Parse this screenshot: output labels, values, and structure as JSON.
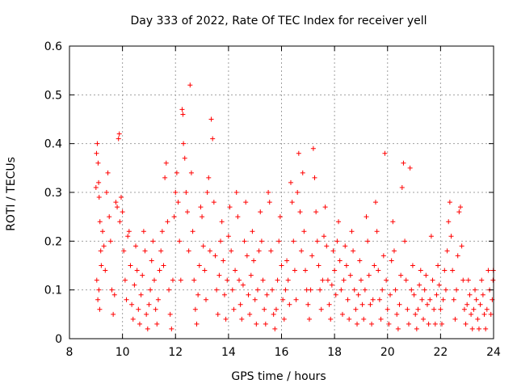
{
  "chart_data": {
    "type": "scatter",
    "title": "Day 333 of 2022, Rate Of TEC Index for receiver yell",
    "xlabel": "GPS time / hours",
    "ylabel": "ROTI / TECUs",
    "xlim": [
      8,
      24
    ],
    "ylim": [
      0,
      0.6
    ],
    "xticks": [
      "8",
      "10",
      "12",
      "14",
      "16",
      "18",
      "20",
      "22",
      "24"
    ],
    "yticks": [
      "0",
      "0.1",
      "0.2",
      "0.3",
      "0.4",
      "0.5",
      "0.6"
    ],
    "grid": true,
    "marker": "+",
    "marker_color": "#ff0000",
    "series": [
      {
        "points": [
          [
            9.0,
            0.31
          ],
          [
            9.02,
            0.38
          ],
          [
            9.05,
            0.4
          ],
          [
            9.08,
            0.36
          ],
          [
            9.1,
            0.32
          ],
          [
            9.12,
            0.29
          ],
          [
            9.15,
            0.24
          ],
          [
            9.18,
            0.18
          ],
          [
            9.03,
            0.12
          ],
          [
            9.07,
            0.08
          ],
          [
            9.11,
            0.1
          ],
          [
            9.14,
            0.06
          ],
          [
            9.2,
            0.15
          ],
          [
            9.25,
            0.22
          ],
          [
            9.3,
            0.19
          ],
          [
            9.35,
            0.14
          ],
          [
            9.4,
            0.3
          ],
          [
            9.45,
            0.34
          ],
          [
            9.5,
            0.25
          ],
          [
            9.55,
            0.2
          ],
          [
            9.6,
            0.1
          ],
          [
            9.65,
            0.05
          ],
          [
            9.7,
            0.09
          ],
          [
            9.75,
            0.28
          ],
          [
            9.8,
            0.27
          ],
          [
            9.85,
            0.41
          ],
          [
            9.88,
            0.42
          ],
          [
            9.9,
            0.24
          ],
          [
            9.95,
            0.29
          ],
          [
            10.0,
            0.26
          ],
          [
            10.05,
            0.18
          ],
          [
            10.1,
            0.12
          ],
          [
            10.15,
            0.08
          ],
          [
            10.2,
            0.21
          ],
          [
            10.25,
            0.22
          ],
          [
            10.3,
            0.15
          ],
          [
            10.35,
            0.07
          ],
          [
            10.4,
            0.04
          ],
          [
            10.45,
            0.11
          ],
          [
            10.5,
            0.19
          ],
          [
            10.55,
            0.14
          ],
          [
            10.6,
            0.06
          ],
          [
            10.65,
            0.03
          ],
          [
            10.7,
            0.09
          ],
          [
            10.75,
            0.13
          ],
          [
            10.8,
            0.22
          ],
          [
            10.85,
            0.18
          ],
          [
            10.9,
            0.05
          ],
          [
            10.95,
            0.02
          ],
          [
            11.0,
            0.07
          ],
          [
            11.05,
            0.1
          ],
          [
            11.1,
            0.16
          ],
          [
            11.15,
            0.2
          ],
          [
            11.2,
            0.12
          ],
          [
            11.25,
            0.06
          ],
          [
            11.3,
            0.03
          ],
          [
            11.35,
            0.08
          ],
          [
            11.4,
            0.14
          ],
          [
            11.45,
            0.18
          ],
          [
            11.5,
            0.22
          ],
          [
            11.55,
            0.15
          ],
          [
            11.6,
            0.33
          ],
          [
            11.65,
            0.36
          ],
          [
            11.7,
            0.24
          ],
          [
            11.75,
            0.1
          ],
          [
            11.8,
            0.05
          ],
          [
            11.85,
            0.02
          ],
          [
            11.9,
            0.12
          ],
          [
            11.95,
            0.25
          ],
          [
            12.0,
            0.3
          ],
          [
            12.05,
            0.34
          ],
          [
            12.1,
            0.28
          ],
          [
            12.15,
            0.2
          ],
          [
            12.2,
            0.12
          ],
          [
            12.25,
            0.47
          ],
          [
            12.28,
            0.46
          ],
          [
            12.3,
            0.4
          ],
          [
            12.35,
            0.37
          ],
          [
            12.4,
            0.3
          ],
          [
            12.45,
            0.26
          ],
          [
            12.5,
            0.18
          ],
          [
            12.55,
            0.52
          ],
          [
            12.6,
            0.34
          ],
          [
            12.65,
            0.22
          ],
          [
            12.7,
            0.12
          ],
          [
            12.75,
            0.06
          ],
          [
            12.8,
            0.03
          ],
          [
            12.85,
            0.09
          ],
          [
            12.9,
            0.15
          ],
          [
            12.95,
            0.27
          ],
          [
            13.0,
            0.25
          ],
          [
            13.05,
            0.19
          ],
          [
            13.1,
            0.14
          ],
          [
            13.15,
            0.08
          ],
          [
            13.2,
            0.3
          ],
          [
            13.25,
            0.33
          ],
          [
            13.3,
            0.18
          ],
          [
            13.35,
            0.45
          ],
          [
            13.4,
            0.41
          ],
          [
            13.45,
            0.28
          ],
          [
            13.5,
            0.17
          ],
          [
            13.55,
            0.1
          ],
          [
            13.6,
            0.05
          ],
          [
            13.65,
            0.13
          ],
          [
            13.7,
            0.2
          ],
          [
            13.75,
            0.24
          ],
          [
            13.8,
            0.16
          ],
          [
            13.85,
            0.09
          ],
          [
            13.9,
            0.04
          ],
          [
            13.95,
            0.12
          ],
          [
            14.0,
            0.21
          ],
          [
            14.05,
            0.27
          ],
          [
            14.1,
            0.18
          ],
          [
            14.15,
            0.1
          ],
          [
            14.2,
            0.06
          ],
          [
            14.25,
            0.14
          ],
          [
            14.3,
            0.3
          ],
          [
            14.35,
            0.25
          ],
          [
            14.4,
            0.12
          ],
          [
            14.45,
            0.07
          ],
          [
            14.5,
            0.04
          ],
          [
            14.55,
            0.11
          ],
          [
            14.6,
            0.2
          ],
          [
            14.65,
            0.28
          ],
          [
            14.7,
            0.17
          ],
          [
            14.75,
            0.09
          ],
          [
            14.8,
            0.05
          ],
          [
            14.85,
            0.13
          ],
          [
            14.9,
            0.22
          ],
          [
            14.95,
            0.16
          ],
          [
            15.0,
            0.08
          ],
          [
            15.05,
            0.03
          ],
          [
            15.1,
            0.1
          ],
          [
            15.15,
            0.18
          ],
          [
            15.2,
            0.26
          ],
          [
            15.25,
            0.2
          ],
          [
            15.3,
            0.12
          ],
          [
            15.35,
            0.06
          ],
          [
            15.4,
            0.03
          ],
          [
            15.45,
            0.09
          ],
          [
            15.5,
            0.3
          ],
          [
            15.55,
            0.28
          ],
          [
            15.6,
            0.18
          ],
          [
            15.65,
            0.1
          ],
          [
            15.7,
            0.05
          ],
          [
            15.75,
            0.02
          ],
          [
            15.8,
            0.06
          ],
          [
            15.85,
            0.12
          ],
          [
            15.9,
            0.2
          ],
          [
            15.95,
            0.25
          ],
          [
            16.0,
            0.15
          ],
          [
            16.05,
            0.08
          ],
          [
            16.1,
            0.04
          ],
          [
            16.15,
            0.1
          ],
          [
            16.2,
            0.16
          ],
          [
            16.25,
            0.12
          ],
          [
            16.3,
            0.07
          ],
          [
            16.35,
            0.32
          ],
          [
            16.4,
            0.28
          ],
          [
            16.45,
            0.2
          ],
          [
            16.5,
            0.14
          ],
          [
            16.55,
            0.08
          ],
          [
            16.6,
            0.3
          ],
          [
            16.65,
            0.38
          ],
          [
            16.7,
            0.26
          ],
          [
            16.75,
            0.18
          ],
          [
            16.8,
            0.34
          ],
          [
            16.85,
            0.22
          ],
          [
            16.9,
            0.14
          ],
          [
            16.95,
            0.1
          ],
          [
            17.0,
            0.07
          ],
          [
            17.05,
            0.04
          ],
          [
            17.1,
            0.1
          ],
          [
            17.15,
            0.17
          ],
          [
            17.2,
            0.39
          ],
          [
            17.25,
            0.33
          ],
          [
            17.3,
            0.26
          ],
          [
            17.35,
            0.2
          ],
          [
            17.4,
            0.15
          ],
          [
            17.45,
            0.1
          ],
          [
            17.5,
            0.06
          ],
          [
            17.55,
            0.12
          ],
          [
            17.6,
            0.21
          ],
          [
            17.65,
            0.27
          ],
          [
            17.7,
            0.19
          ],
          [
            17.75,
            0.12
          ],
          [
            17.8,
            0.07
          ],
          [
            17.85,
            0.04
          ],
          [
            17.9,
            0.11
          ],
          [
            17.95,
            0.18
          ],
          [
            18.0,
            0.14
          ],
          [
            18.05,
            0.09
          ],
          [
            18.1,
            0.2
          ],
          [
            18.15,
            0.24
          ],
          [
            18.2,
            0.16
          ],
          [
            18.25,
            0.1
          ],
          [
            18.3,
            0.05
          ],
          [
            18.35,
            0.12
          ],
          [
            18.4,
            0.19
          ],
          [
            18.45,
            0.15
          ],
          [
            18.5,
            0.08
          ],
          [
            18.55,
            0.04
          ],
          [
            18.6,
            0.13
          ],
          [
            18.65,
            0.22
          ],
          [
            18.7,
            0.18
          ],
          [
            18.75,
            0.1
          ],
          [
            18.8,
            0.06
          ],
          [
            18.85,
            0.03
          ],
          [
            18.9,
            0.09
          ],
          [
            18.95,
            0.16
          ],
          [
            19.0,
            0.12
          ],
          [
            19.05,
            0.07
          ],
          [
            19.1,
            0.04
          ],
          [
            19.15,
            0.1
          ],
          [
            19.2,
            0.25
          ],
          [
            19.25,
            0.2
          ],
          [
            19.3,
            0.13
          ],
          [
            19.35,
            0.07
          ],
          [
            19.4,
            0.03
          ],
          [
            19.45,
            0.08
          ],
          [
            19.5,
            0.15
          ],
          [
            19.55,
            0.28
          ],
          [
            19.6,
            0.22
          ],
          [
            19.65,
            0.14
          ],
          [
            19.7,
            0.08
          ],
          [
            19.75,
            0.04
          ],
          [
            19.8,
            0.1
          ],
          [
            19.85,
            0.17
          ],
          [
            19.9,
            0.38
          ],
          [
            19.95,
            0.12
          ],
          [
            20.0,
            0.06
          ],
          [
            20.05,
            0.03
          ],
          [
            20.1,
            0.09
          ],
          [
            20.15,
            0.16
          ],
          [
            20.2,
            0.24
          ],
          [
            20.25,
            0.18
          ],
          [
            20.3,
            0.1
          ],
          [
            20.35,
            0.05
          ],
          [
            20.4,
            0.02
          ],
          [
            20.45,
            0.07
          ],
          [
            20.5,
            0.13
          ],
          [
            20.55,
            0.31
          ],
          [
            20.6,
            0.36
          ],
          [
            20.65,
            0.2
          ],
          [
            20.7,
            0.12
          ],
          [
            20.75,
            0.06
          ],
          [
            20.8,
            0.03
          ],
          [
            20.85,
            0.35
          ],
          [
            20.9,
            0.1
          ],
          [
            20.95,
            0.15
          ],
          [
            21.0,
            0.09
          ],
          [
            21.05,
            0.05
          ],
          [
            21.1,
            0.02
          ],
          [
            21.15,
            0.06
          ],
          [
            21.2,
            0.11
          ],
          [
            21.25,
            0.14
          ],
          [
            21.3,
            0.08
          ],
          [
            21.35,
            0.04
          ],
          [
            21.4,
            0.1
          ],
          [
            21.45,
            0.13
          ],
          [
            21.5,
            0.07
          ],
          [
            21.55,
            0.03
          ],
          [
            21.6,
            0.08
          ],
          [
            21.65,
            0.21
          ],
          [
            21.7,
            0.12
          ],
          [
            21.75,
            0.06
          ],
          [
            21.8,
            0.03
          ],
          [
            21.85,
            0.09
          ],
          [
            21.9,
            0.15
          ],
          [
            21.95,
            0.11
          ],
          [
            22.0,
            0.06
          ],
          [
            22.05,
            0.03
          ],
          [
            22.1,
            0.08
          ],
          [
            22.15,
            0.14
          ],
          [
            22.2,
            0.1
          ],
          [
            22.25,
            0.18
          ],
          [
            22.3,
            0.24
          ],
          [
            22.35,
            0.28
          ],
          [
            22.4,
            0.21
          ],
          [
            22.45,
            0.14
          ],
          [
            22.5,
            0.08
          ],
          [
            22.55,
            0.04
          ],
          [
            22.6,
            0.1
          ],
          [
            22.65,
            0.17
          ],
          [
            22.7,
            0.26
          ],
          [
            22.75,
            0.27
          ],
          [
            22.8,
            0.19
          ],
          [
            22.85,
            0.12
          ],
          [
            22.9,
            0.06
          ],
          [
            22.95,
            0.03
          ],
          [
            23.0,
            0.07
          ],
          [
            23.05,
            0.12
          ],
          [
            23.1,
            0.09
          ],
          [
            23.15,
            0.05
          ],
          [
            23.2,
            0.02
          ],
          [
            23.25,
            0.06
          ],
          [
            23.3,
            0.1
          ],
          [
            23.35,
            0.08
          ],
          [
            23.4,
            0.04
          ],
          [
            23.45,
            0.02
          ],
          [
            23.5,
            0.07
          ],
          [
            23.55,
            0.12
          ],
          [
            23.6,
            0.09
          ],
          [
            23.65,
            0.05
          ],
          [
            23.7,
            0.02
          ],
          [
            23.75,
            0.06
          ],
          [
            23.8,
            0.14
          ],
          [
            23.85,
            0.1
          ],
          [
            23.9,
            0.05
          ],
          [
            23.95,
            0.08
          ],
          [
            23.98,
            0.12
          ],
          [
            23.99,
            0.14
          ]
        ]
      }
    ]
  }
}
